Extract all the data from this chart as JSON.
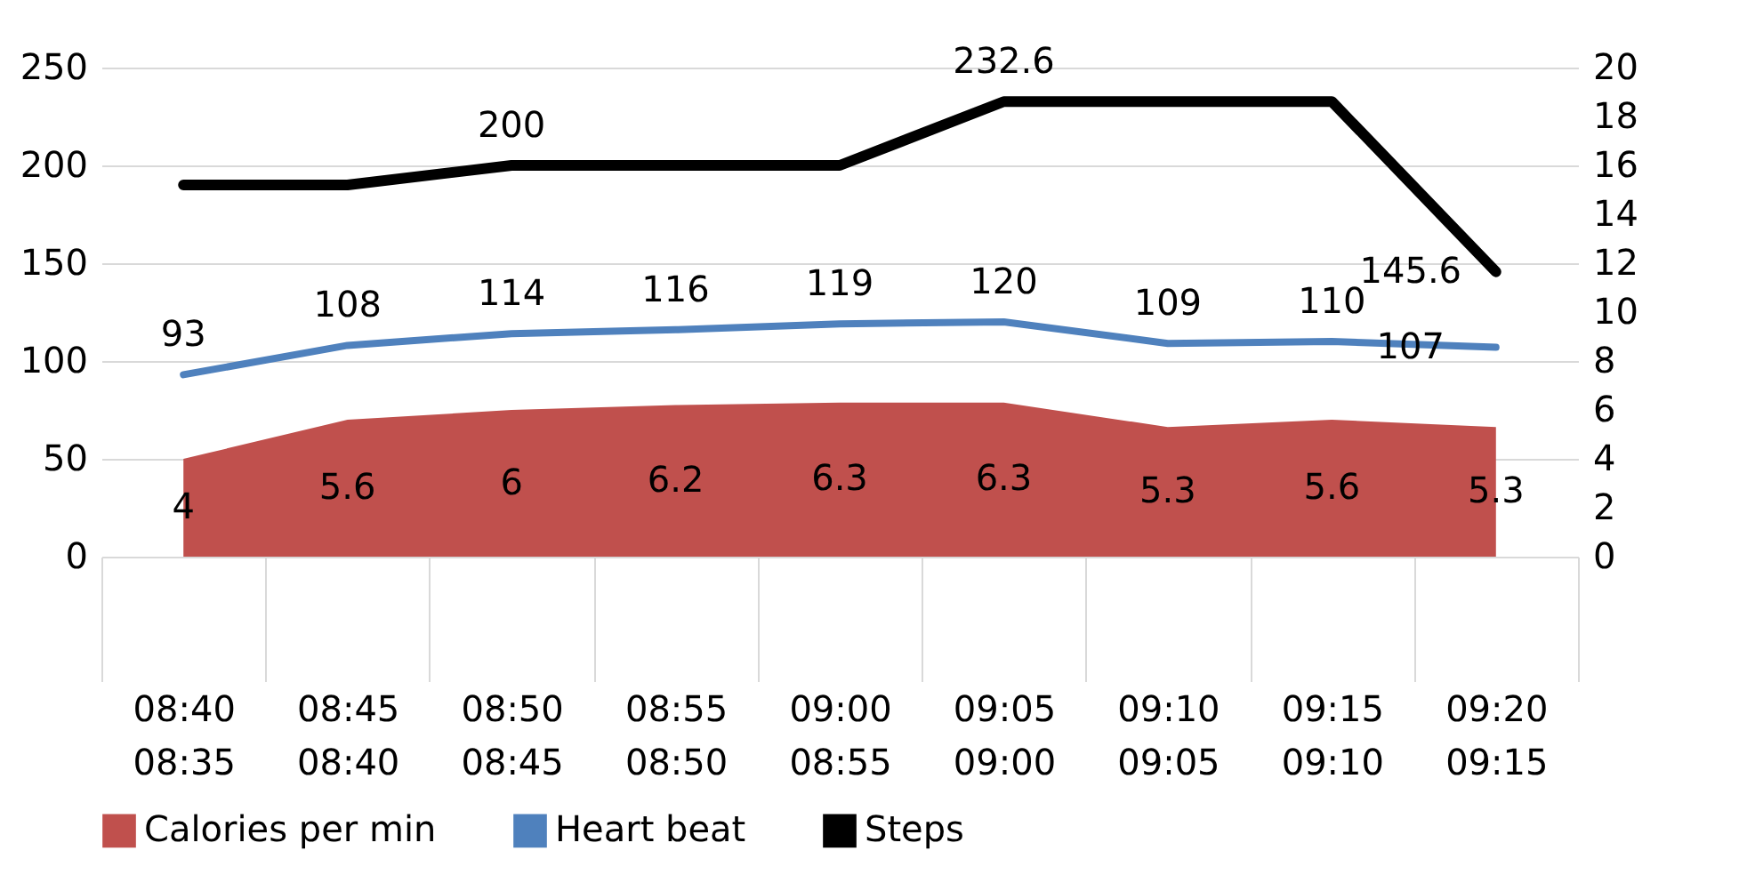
{
  "chart_data": {
    "type": "line",
    "categories": [
      "08:40\n08:35",
      "08:45\n08:40",
      "08:50\n08:45",
      "08:55\n08:50",
      "09:00\n08:55",
      "09:05\n09:00",
      "09:10\n09:05",
      "09:15\n09:10",
      "09:20\n09:15"
    ],
    "series": [
      {
        "name": "Calories per min",
        "type": "area",
        "axis": "y2",
        "color": "#c0504d",
        "values": [
          4,
          5.6,
          6,
          6.2,
          6.3,
          6.3,
          5.3,
          5.6,
          5.3
        ],
        "value_labels": [
          "4",
          "5.6",
          "6",
          "6.2",
          "6.3",
          "6.3",
          "5.3",
          "5.6",
          "5.3"
        ]
      },
      {
        "name": "Heart beat",
        "color": "#4f81bd",
        "values": [
          93,
          108,
          114,
          116,
          119,
          120,
          109,
          110,
          107
        ],
        "value_labels": [
          "93",
          "108",
          "114",
          "116",
          "119",
          "120",
          "109",
          "110",
          "107"
        ]
      },
      {
        "name": "Steps",
        "color": "#000000",
        "values": [
          190,
          190,
          200,
          200,
          200,
          232.6,
          232.6,
          232.6,
          145.6
        ],
        "value_labels": [
          null,
          null,
          "200",
          null,
          null,
          "232.6",
          null,
          null,
          "145.6"
        ]
      }
    ],
    "ylim": [
      0,
      250
    ],
    "yticks": [
      0,
      50,
      100,
      150,
      200,
      250
    ],
    "y2lim": [
      0,
      20
    ],
    "y2ticks": [
      0,
      2,
      4,
      6,
      8,
      10,
      12,
      14,
      16,
      18,
      20
    ],
    "grid": "y",
    "legend": "bottom"
  }
}
